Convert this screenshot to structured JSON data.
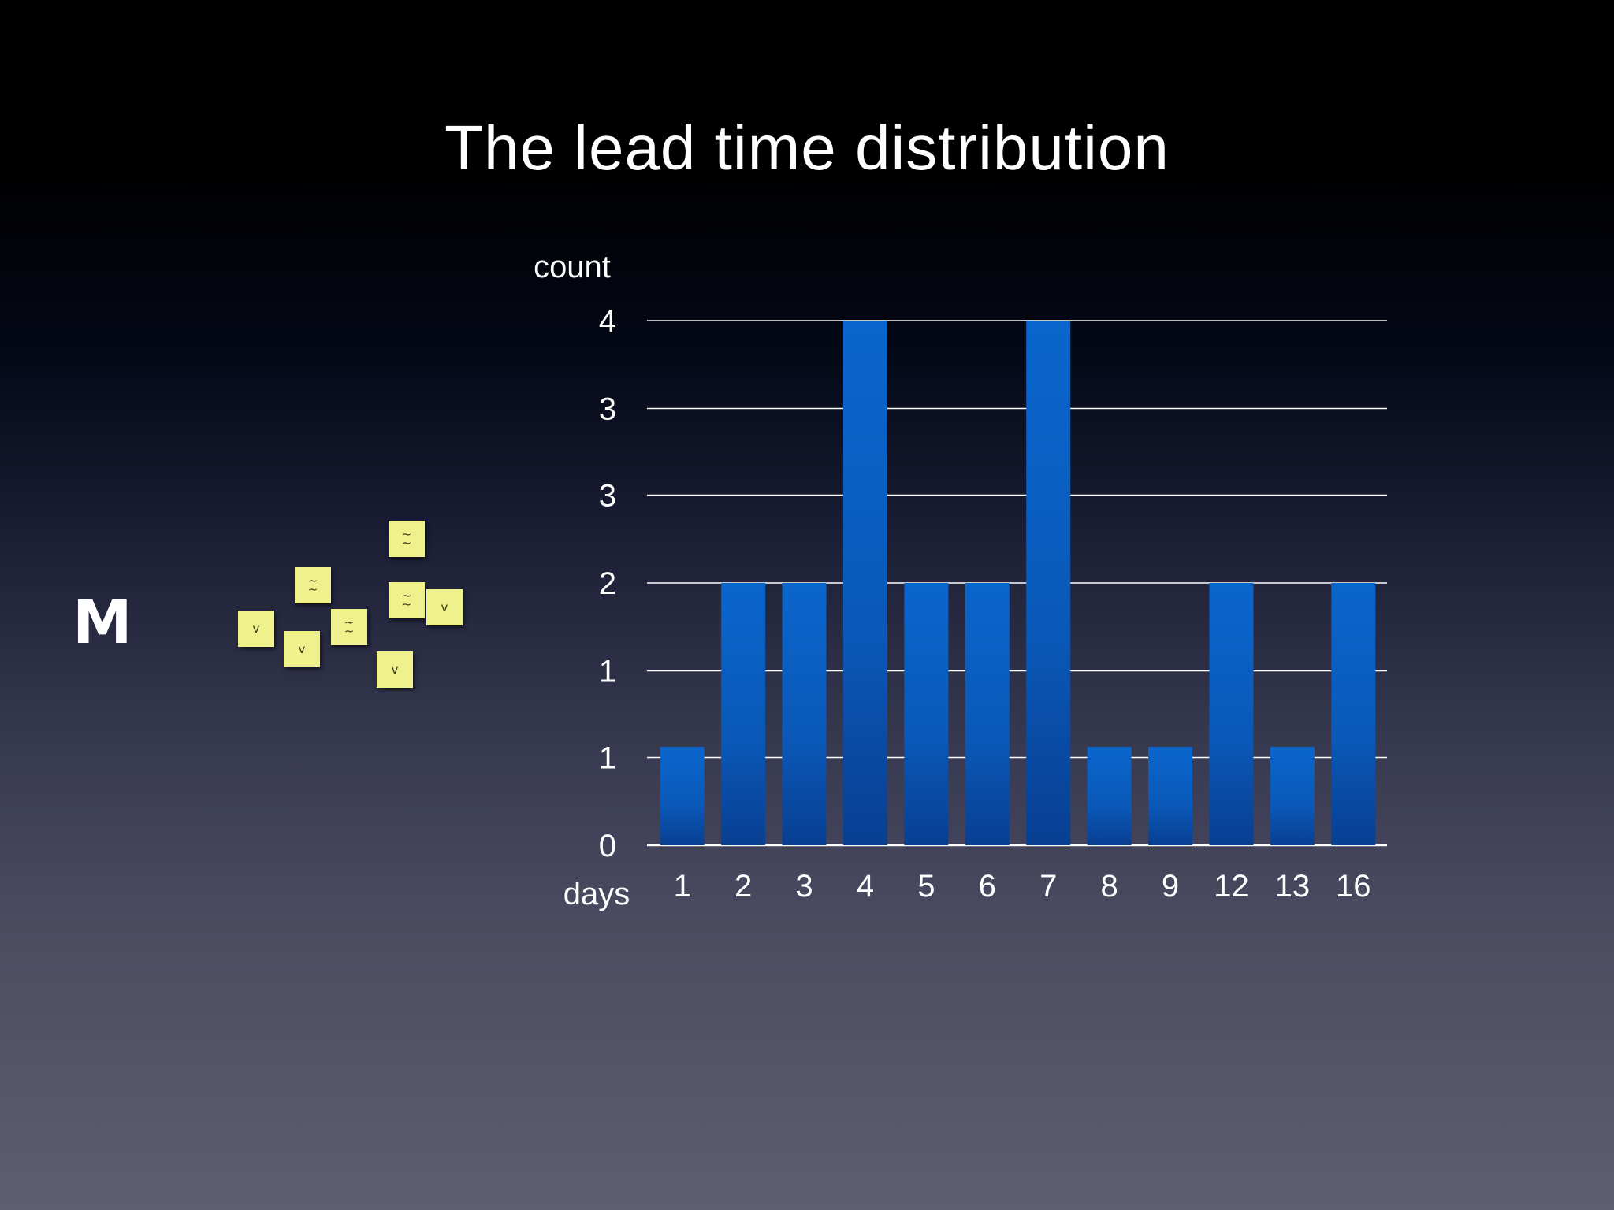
{
  "slide": {
    "title": "The lead time distribution",
    "side_letter": "M"
  },
  "notes": [
    {
      "mark": "~\n~"
    },
    {
      "mark": "~\n~"
    },
    {
      "mark": "~\n~"
    },
    {
      "mark": "~\n~"
    },
    {
      "mark": "v"
    },
    {
      "mark": "v"
    },
    {
      "mark": "v"
    },
    {
      "mark": "v"
    }
  ],
  "chart_data": {
    "type": "bar",
    "title": "The lead time distribution",
    "xlabel": "days",
    "ylabel": "count",
    "categories": [
      "1",
      "2",
      "3",
      "4",
      "5",
      "6",
      "7",
      "8",
      "9",
      "12",
      "13",
      "16"
    ],
    "values": [
      0.75,
      2,
      2,
      4,
      2,
      2,
      4,
      0.75,
      0.75,
      2,
      0.75,
      2
    ],
    "ylim": [
      0,
      4
    ],
    "y_ticks": [
      0,
      0.67,
      1.33,
      2,
      2.67,
      3.33,
      4
    ],
    "y_tick_labels": [
      "0",
      "1",
      "1",
      "2",
      "3",
      "3",
      "4"
    ],
    "grid": true,
    "bar_color": "#0a60c4",
    "grid_color": "#ffffff"
  }
}
